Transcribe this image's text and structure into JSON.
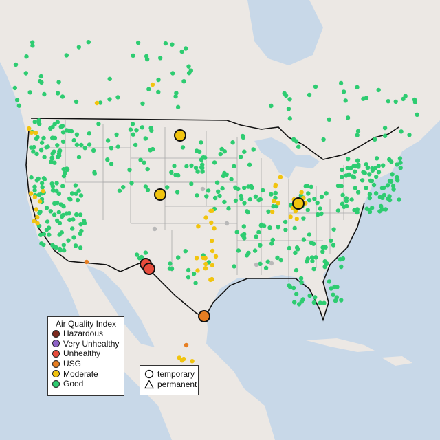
{
  "legend": {
    "title": "Air Quality Index",
    "items": [
      {
        "label": "Hazardous",
        "color": "#7e2a1e"
      },
      {
        "label": "Very Unhealthy",
        "color": "#8e63c6"
      },
      {
        "label": "Unhealthy",
        "color": "#e74c3c"
      },
      {
        "label": "USG",
        "color": "#e67e22"
      },
      {
        "label": "Moderate",
        "color": "#f1c40f"
      },
      {
        "label": "Good",
        "color": "#2ecc71"
      }
    ]
  },
  "monitor_types": {
    "items": [
      {
        "label": "temporary",
        "icon": "circle-icon"
      },
      {
        "label": "permanent",
        "icon": "triangle-icon"
      }
    ]
  },
  "colors": {
    "water": "#c8d8e8",
    "land": "#ece8e4",
    "border": "#111111",
    "state_line": "#a9a9a9"
  }
}
